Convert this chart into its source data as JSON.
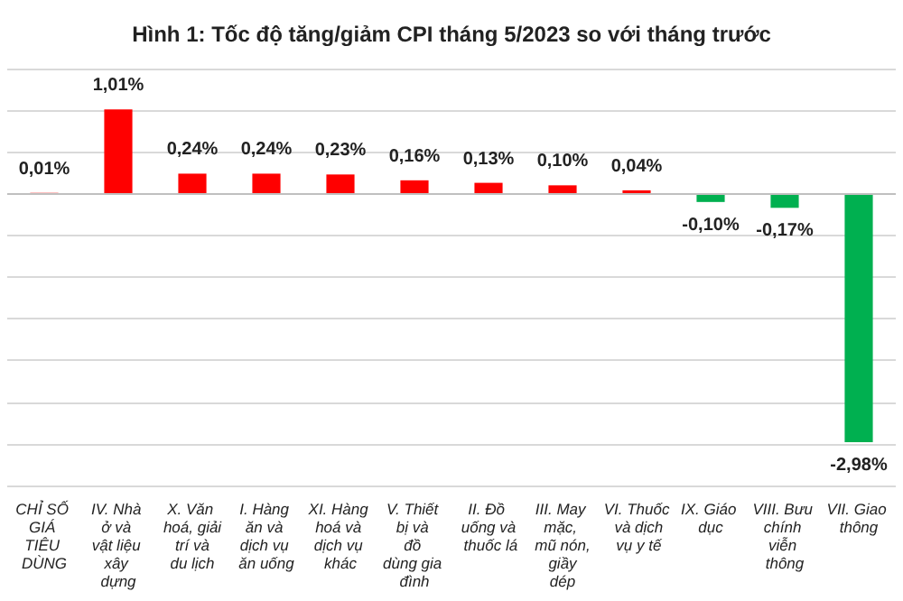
{
  "chart_data": {
    "type": "bar",
    "title": "Hình 1: Tốc độ tăng/giảm CPI tháng 5/2023 so với tháng trước",
    "categories": [
      "CHỈ SỐ GIÁ TIÊU DÙNG",
      "IV. Nhà ở và vật liệu xây dựng",
      "X. Văn hoá, giải trí và du lịch",
      "I. Hàng ăn và dịch vụ ăn uống",
      "XI. Hàng hoá và dịch vụ khác",
      "V. Thiết bị và đồ dùng gia đình",
      "II. Đồ uống và thuốc lá",
      "III. May mặc, mũ nón, giầy dép",
      "VI. Thuốc và dịch vụ y tế",
      "IX. Giáo dục",
      "VIII. Bưu chính viễn thông",
      "VII. Giao thông"
    ],
    "values": [
      0.01,
      1.01,
      0.24,
      0.24,
      0.23,
      0.16,
      0.13,
      0.1,
      0.04,
      -0.1,
      -0.17,
      -2.98
    ],
    "colors": [
      "#ff0000",
      "#ff0000",
      "#ff0000",
      "#ff0000",
      "#ff0000",
      "#ff0000",
      "#ff0000",
      "#ff0000",
      "#ff0000",
      "#00b050",
      "#00b050",
      "#00b050"
    ],
    "value_labels": [
      "0,01%",
      "1,01%",
      "0,24%",
      "0,24%",
      "0,23%",
      "0,16%",
      "0,13%",
      "0,10%",
      "0,04%",
      "-0,10%",
      "-0,17%",
      "-2,98%"
    ],
    "ylim": [
      -3.5,
      1.5
    ],
    "yticks": [
      {
        "value": -3.5,
        "label": null
      },
      {
        "value": -3,
        "label": null
      },
      {
        "value": -2.5,
        "label": null
      },
      {
        "value": -2,
        "label": null
      },
      {
        "value": -1.5,
        "label": null
      },
      {
        "value": -1,
        "label": null
      },
      {
        "value": -0.5,
        "label": null
      },
      {
        "value": 0,
        "label": null
      },
      {
        "value": 0.5,
        "label": null
      },
      {
        "value": 1,
        "label": null
      },
      {
        "value": 1.5,
        "label": null
      }
    ],
    "grid": "y",
    "tick_labels": "x"
  }
}
